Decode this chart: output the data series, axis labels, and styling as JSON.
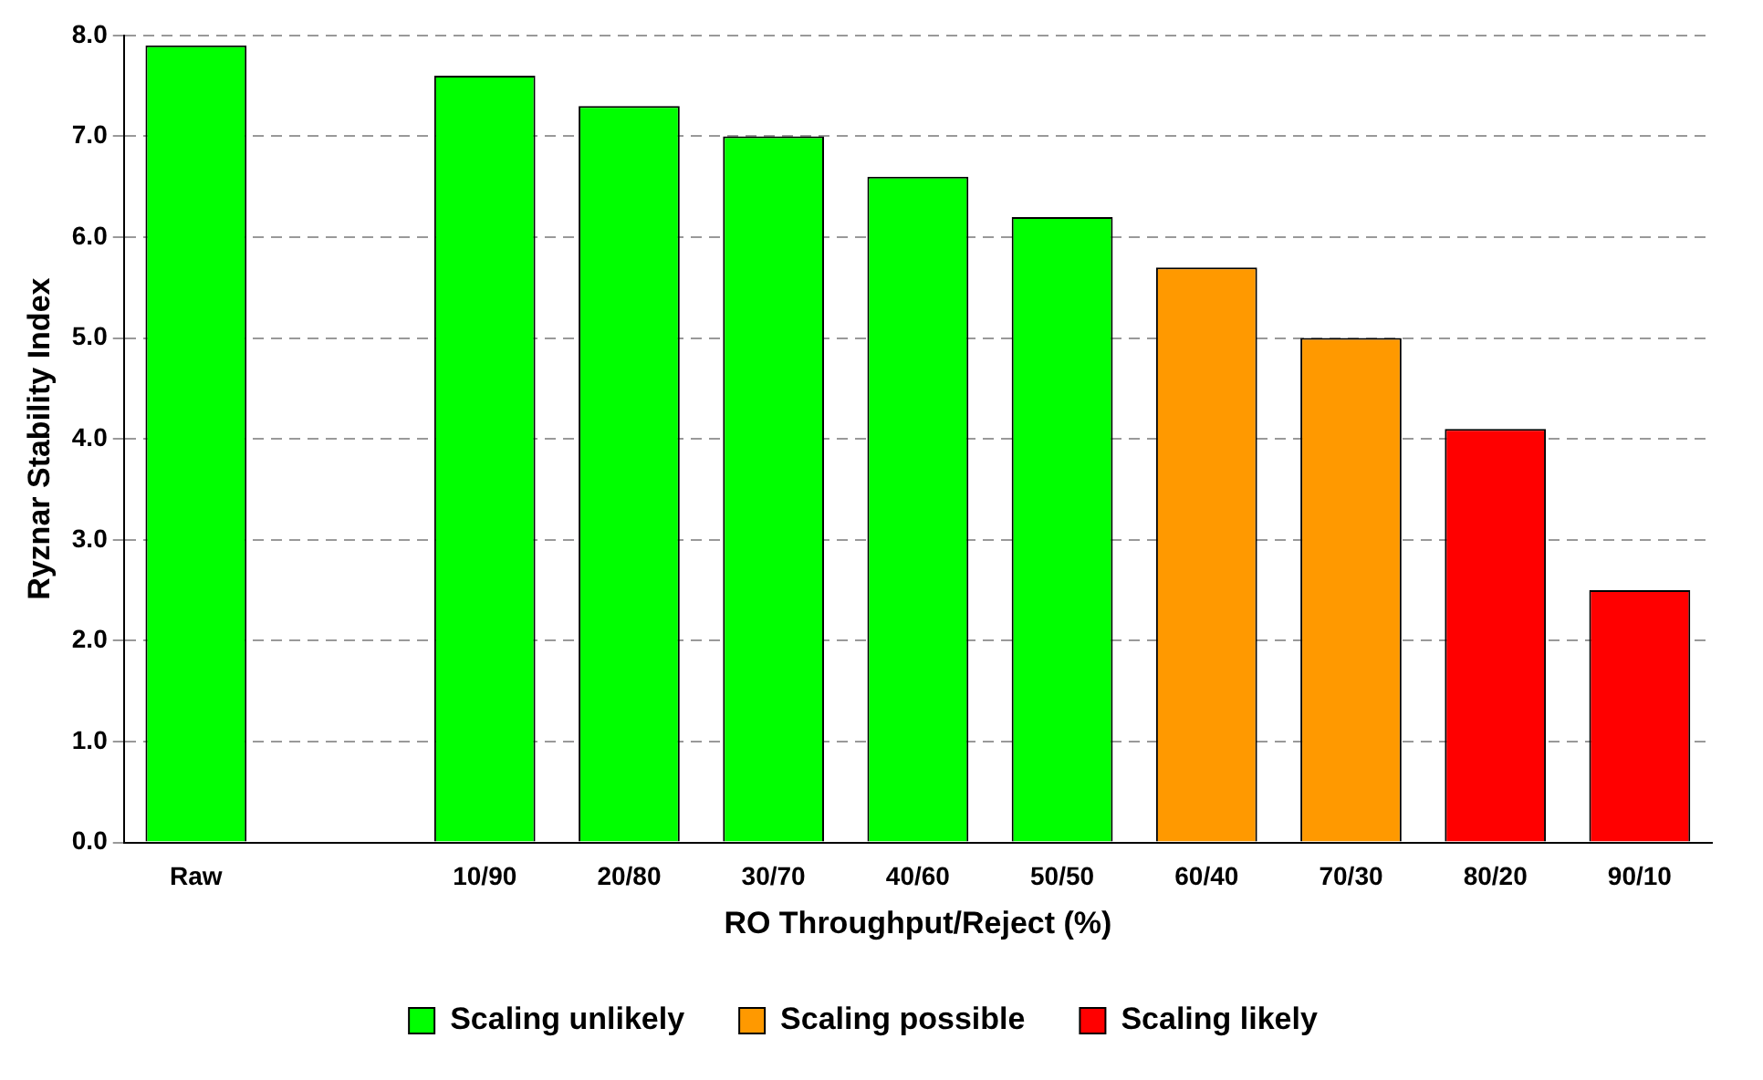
{
  "chart_data": {
    "type": "bar",
    "xlabel": "RO Throughput/Reject (%)",
    "ylabel": "Ryznar Stability Index",
    "categories": [
      "Raw",
      null,
      "10/90",
      "20/80",
      "30/70",
      "40/60",
      "50/50",
      "60/40",
      "70/30",
      "80/20",
      "90/10"
    ],
    "stacked": true,
    "series": [
      {
        "name": "Scaling unlikely",
        "color": "#00ff00",
        "values": [
          7.9,
          null,
          7.6,
          7.3,
          7.0,
          6.6,
          6.2,
          null,
          null,
          null,
          null
        ]
      },
      {
        "name": "Scaling possible",
        "color": "#ff9900",
        "values": [
          null,
          null,
          null,
          null,
          null,
          null,
          null,
          5.7,
          5.0,
          null,
          null
        ]
      },
      {
        "name": "Scaling likely",
        "color": "#ff0000",
        "values": [
          null,
          null,
          null,
          null,
          null,
          null,
          null,
          null,
          null,
          4.1,
          2.5
        ]
      }
    ],
    "ylim": [
      0,
      8
    ],
    "yticks": [
      {
        "value": 0,
        "label": "0.0"
      },
      {
        "value": 1,
        "label": "1.0"
      },
      {
        "value": 2,
        "label": "2.0"
      },
      {
        "value": 3,
        "label": "3.0"
      },
      {
        "value": 4,
        "label": "4.0"
      },
      {
        "value": 5,
        "label": "5.0"
      },
      {
        "value": 6,
        "label": "6.0"
      },
      {
        "value": 7,
        "label": "7.0"
      },
      {
        "value": 8,
        "label": "8.0"
      }
    ],
    "grid": "y",
    "legend": "bottom"
  }
}
